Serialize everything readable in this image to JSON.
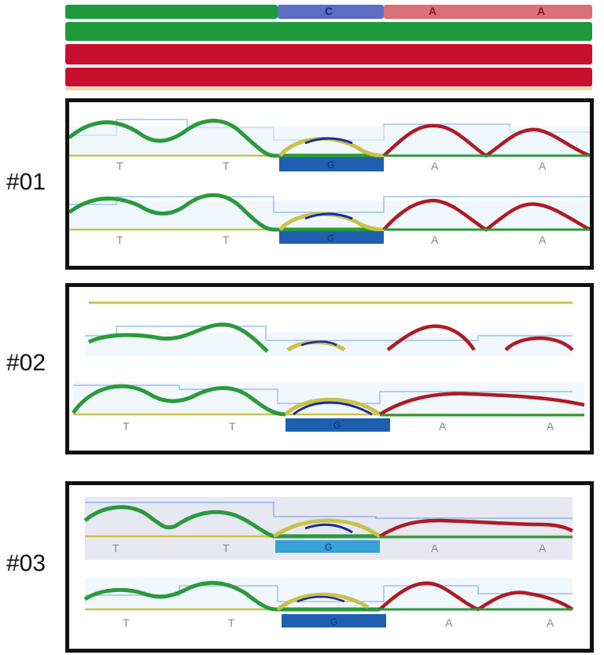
{
  "reference": {
    "segments": [
      {
        "base": "",
        "color": "#1e9a3c"
      },
      {
        "base": "C",
        "color": "#5a6fc4"
      },
      {
        "base": "A",
        "color": "#d9707a"
      },
      {
        "base": "A",
        "color": "#d9707a"
      }
    ]
  },
  "tracks": [
    {
      "color": "#1e9a3c"
    },
    {
      "color": "#c8102e"
    },
    {
      "color": "#c8102e"
    }
  ],
  "samples": [
    {
      "label": "#01",
      "traces": 2
    },
    {
      "label": "#02",
      "traces": 2
    },
    {
      "label": "#03",
      "traces": 2
    }
  ],
  "base_calls": [
    "T",
    "T",
    "G",
    "A",
    "A"
  ],
  "colors": {
    "green_trace": "#2a9a3a",
    "red_trace": "#b01a22",
    "blue_trace": "#1c2a9c",
    "yellow_trace": "#c9c24a",
    "highlight_box": "#1f5fb0",
    "quality_line": "#8ab4e0"
  }
}
